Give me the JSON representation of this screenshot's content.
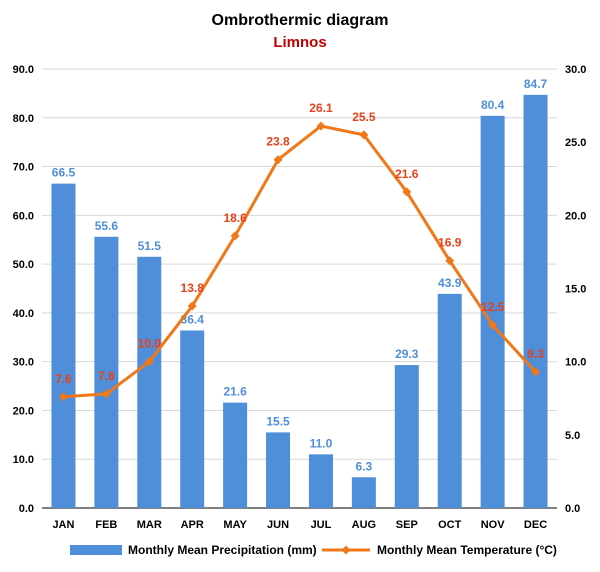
{
  "colors": {
    "precip": "#4f8fd9",
    "precip_label": "#4f8fd9",
    "temp": "#f07818",
    "temp_label": "#e8401c",
    "subtitle": "#c00000",
    "axis": "#000000",
    "grid": "#d9d9d9"
  },
  "chart_data": {
    "type": "bar",
    "title": "Ombrothermic diagram",
    "subtitle": "Limnos",
    "categories": [
      "JAN",
      "FEB",
      "MAR",
      "APR",
      "MAY",
      "JUN",
      "JUL",
      "AUG",
      "SEP",
      "OCT",
      "NOV",
      "DEC"
    ],
    "series": [
      {
        "name": "Monthly Mean Precipitation (mm)",
        "type": "bar",
        "axis": "left",
        "values": [
          66.5,
          55.6,
          51.5,
          36.4,
          21.6,
          15.5,
          11.0,
          6.3,
          29.3,
          43.9,
          80.4,
          84.7
        ],
        "labels": [
          "66.5",
          "55.6",
          "51.5",
          "36.4",
          "21.6",
          "15.5",
          "11.0",
          "6.3",
          "29.3",
          "43.9",
          "80.4",
          "84.7"
        ]
      },
      {
        "name": "Monthly Mean Temperature (°C)",
        "type": "line",
        "axis": "right",
        "values": [
          7.6,
          7.8,
          10.0,
          13.8,
          18.6,
          23.8,
          26.1,
          25.5,
          21.6,
          16.9,
          12.5,
          9.3
        ],
        "labels": [
          "7.6",
          "7.8",
          "10.0",
          "13.8",
          "18.6",
          "23.8",
          "26.1",
          "25.5",
          "21.6",
          "16.9",
          "12.5",
          "9.3"
        ]
      }
    ],
    "y_left": {
      "min": 0,
      "max": 90,
      "ticks": [
        "0.0",
        "10.0",
        "20.0",
        "30.0",
        "40.0",
        "50.0",
        "60.0",
        "70.0",
        "80.0",
        "90.0"
      ]
    },
    "y_right": {
      "min": 0,
      "max": 30,
      "ticks": [
        "0.0",
        "5.0",
        "10.0",
        "15.0",
        "20.0",
        "25.0",
        "30.0"
      ]
    },
    "grid": true,
    "legend_position": "bottom"
  }
}
